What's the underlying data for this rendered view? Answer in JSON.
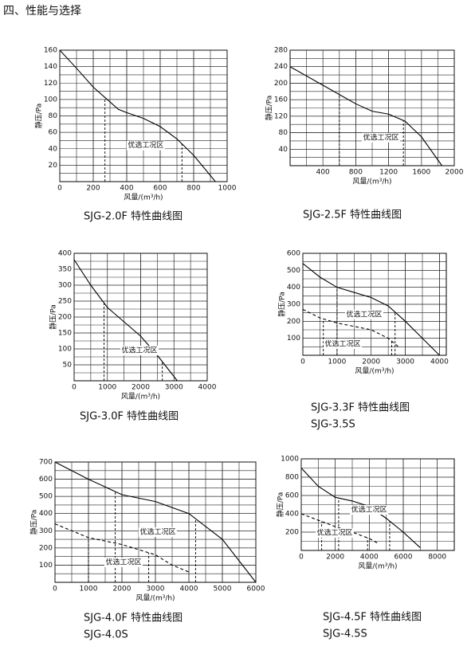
{
  "heading": "四、性能与选择",
  "chart_data": [
    {
      "type": "line",
      "captions": [
        "SJG-2.0F 特性曲线图"
      ],
      "xlabel": "风量/(m³/h)",
      "ylabel": "静压/Pa",
      "xlim": [
        0,
        1000
      ],
      "ylim": [
        0,
        160
      ],
      "xticks": [
        0,
        200,
        400,
        600,
        800,
        1000
      ],
      "yticks": [
        20,
        40,
        60,
        80,
        100,
        120,
        140,
        160
      ],
      "series": [
        {
          "color": "#000",
          "dashed": false,
          "x": [
            0,
            100,
            200,
            300,
            350,
            400,
            500,
            600,
            700,
            800,
            930
          ],
          "values": [
            160,
            138,
            115,
            97,
            88,
            84,
            77,
            67,
            52,
            32,
            0
          ]
        }
      ],
      "annotations": [
        {
          "text": "优选工况区",
          "x": 514,
          "y": 44,
          "series": 0,
          "zone_x": [
            270,
            730
          ]
        }
      ]
    },
    {
      "type": "line",
      "captions": [
        "SJG-2.5F 特性曲线图"
      ],
      "xlabel": "风量/(m³/h)",
      "ylabel": "静压/Pa",
      "xlim": [
        0,
        2000
      ],
      "ylim": [
        0,
        280
      ],
      "xticks": [
        400,
        800,
        1200,
        1600,
        2000
      ],
      "yticks": [
        40,
        80,
        120,
        160,
        200,
        240,
        280
      ],
      "series": [
        {
          "color": "#000",
          "dashed": false,
          "x": [
            0,
            400,
            800,
            1000,
            1200,
            1400,
            1600,
            1850
          ],
          "values": [
            240,
            195,
            150,
            132,
            125,
            108,
            70,
            0
          ]
        }
      ],
      "annotations": [
        {
          "text": "优选工况区",
          "x": 1107,
          "y": 68,
          "series": 0,
          "zone_x": [
            600,
            1380
          ]
        }
      ]
    },
    {
      "type": "line",
      "captions": [
        "SJG-3.0F 特性曲线图"
      ],
      "xlabel": "风量/(m³/h)",
      "ylabel": "静压/Pa",
      "xlim": [
        0,
        4000
      ],
      "ylim": [
        0,
        400
      ],
      "xticks": [
        0,
        1000,
        2000,
        3000,
        4000
      ],
      "yticks": [
        50,
        100,
        150,
        200,
        250,
        300,
        350,
        400
      ],
      "series": [
        {
          "color": "#000",
          "dashed": false,
          "x": [
            0,
            500,
            1000,
            1500,
            2000,
            2500,
            2800,
            3100
          ],
          "values": [
            380,
            300,
            230,
            185,
            140,
            80,
            40,
            0
          ]
        }
      ],
      "annotations": [
        {
          "text": "优选工况区",
          "x": 1964,
          "y": 95,
          "series": 0,
          "zone_x": [
            900,
            2650
          ]
        }
      ]
    },
    {
      "type": "line",
      "captions": [
        "SJG-3.3F 特性曲线图",
        "SJG-3.5S"
      ],
      "xlabel": "风量/(m³/h)",
      "ylabel": "静压/Pa",
      "xlim": [
        0,
        4200
      ],
      "ylim": [
        0,
        600
      ],
      "xticks": [
        0,
        1000,
        2000,
        3000,
        4000
      ],
      "yticks": [
        100,
        200,
        300,
        400,
        500,
        600
      ],
      "series": [
        {
          "color": "#000",
          "dashed": false,
          "x": [
            0,
            500,
            1000,
            1500,
            2000,
            2500,
            3000,
            3500,
            4000
          ],
          "values": [
            540,
            460,
            400,
            370,
            340,
            290,
            200,
            100,
            0
          ]
        },
        {
          "color": "#000",
          "dashed": true,
          "x": [
            0,
            500,
            1000,
            1500,
            2000,
            2500,
            2800
          ],
          "values": [
            270,
            220,
            190,
            170,
            150,
            100,
            50
          ]
        }
      ],
      "annotations": [
        {
          "text": "优选工况区",
          "x": 1795,
          "y": 240,
          "series": 0,
          "zone_x": [
            1000,
            2700
          ]
        },
        {
          "text": "优选工况区",
          "x": 1166,
          "y": 66,
          "series": 1,
          "zone_x": [
            600,
            2600
          ]
        }
      ]
    },
    {
      "type": "line",
      "captions": [
        "SJG-4.0F 特性曲线图",
        "SJG-4.0S"
      ],
      "xlabel": "风量/(m³/h)",
      "ylabel": "静压/Pa",
      "xlim": [
        0,
        6000
      ],
      "ylim": [
        0,
        700
      ],
      "xticks": [
        0,
        1000,
        2000,
        3000,
        4000,
        5000,
        6000
      ],
      "yticks": [
        100,
        200,
        300,
        400,
        500,
        600,
        700
      ],
      "series": [
        {
          "color": "#000",
          "dashed": false,
          "x": [
            0,
            1000,
            2000,
            3000,
            4000,
            5000,
            6000
          ],
          "values": [
            700,
            600,
            510,
            470,
            400,
            250,
            0
          ]
        },
        {
          "color": "#000",
          "dashed": true,
          "x": [
            0,
            1000,
            2000,
            3000,
            3500,
            4000
          ],
          "values": [
            340,
            260,
            220,
            160,
            100,
            60
          ]
        }
      ],
      "annotations": [
        {
          "text": "优选工况区",
          "x": 3071,
          "y": 292,
          "series": 0,
          "zone_x": [
            1800,
            4200
          ]
        },
        {
          "text": "优选工况区",
          "x": 2048,
          "y": 116,
          "series": 1,
          "zone_x": [
            1000,
            2800
          ]
        }
      ]
    },
    {
      "type": "line",
      "captions": [
        "SJG-4.5F 特性曲线图",
        "SJG-4.5S"
      ],
      "xlabel": "风量/(m³/h)",
      "ylabel": "静压/Pa",
      "xlim": [
        0,
        9000
      ],
      "ylim": [
        0,
        1000
      ],
      "xticks": [
        0,
        2000,
        4000,
        6000,
        8000
      ],
      "yticks": [
        200,
        400,
        600,
        800,
        1000
      ],
      "series": [
        {
          "color": "#000",
          "dashed": false,
          "x": [
            0,
            1000,
            2000,
            3000,
            4000,
            5000,
            6000,
            7000
          ],
          "values": [
            900,
            700,
            580,
            540,
            480,
            350,
            200,
            30
          ]
        },
        {
          "color": "#000",
          "dashed": true,
          "x": [
            0,
            1000,
            2000,
            3000,
            4000,
            4500
          ],
          "values": [
            400,
            330,
            260,
            200,
            130,
            80
          ]
        }
      ],
      "annotations": [
        {
          "text": "优选工况区",
          "x": 3990,
          "y": 443,
          "series": 0,
          "zone_x": [
            2200,
            5200
          ]
        },
        {
          "text": "优选工况区",
          "x": 1972,
          "y": 191,
          "series": 1,
          "zone_x": [
            1200,
            3900
          ]
        }
      ]
    }
  ]
}
